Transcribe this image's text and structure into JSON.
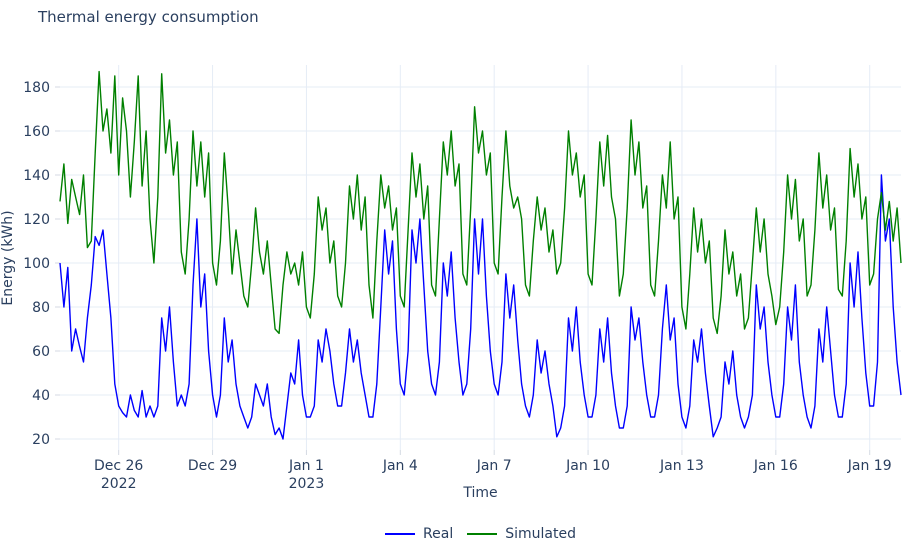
{
  "title": "Thermal energy consumption",
  "colors": {
    "text": "#2a3f5f",
    "grid": "#e5ecf6",
    "tick": "#d4dae3",
    "background": "#ffffff",
    "real": "#0000ff",
    "simulated": "#008000"
  },
  "chart_data": {
    "type": "line",
    "title": "Thermal energy consumption",
    "xlabel": "Time",
    "ylabel": "Energy (kWh)",
    "x_start": "2022-12-24 03:00",
    "x_interval_hours": 3,
    "ylim": [
      15,
      190
    ],
    "y_ticks": [
      20,
      40,
      60,
      80,
      100,
      120,
      140,
      160,
      180
    ],
    "x_ticks": [
      {
        "index": 15,
        "label": "Dec 26",
        "sublabel": "2022"
      },
      {
        "index": 39,
        "label": "Dec 29",
        "sublabel": ""
      },
      {
        "index": 63,
        "label": "Jan 1",
        "sublabel": "2023"
      },
      {
        "index": 87,
        "label": "Jan 4",
        "sublabel": ""
      },
      {
        "index": 111,
        "label": "Jan 7",
        "sublabel": ""
      },
      {
        "index": 135,
        "label": "Jan 10",
        "sublabel": ""
      },
      {
        "index": 159,
        "label": "Jan 13",
        "sublabel": ""
      },
      {
        "index": 183,
        "label": "Jan 16",
        "sublabel": ""
      },
      {
        "index": 207,
        "label": "Jan 19",
        "sublabel": ""
      }
    ],
    "grid": true,
    "legend_position": "bottom-center",
    "series": [
      {
        "name": "Real",
        "color": "#0000ff",
        "values": [
          100,
          80,
          98,
          60,
          70,
          62,
          55,
          75,
          90,
          112,
          108,
          115,
          95,
          75,
          45,
          35,
          32,
          30,
          40,
          33,
          30,
          42,
          30,
          35,
          30,
          35,
          75,
          60,
          80,
          55,
          35,
          40,
          35,
          45,
          90,
          120,
          80,
          95,
          60,
          40,
          30,
          40,
          75,
          55,
          65,
          45,
          35,
          30,
          25,
          30,
          45,
          40,
          35,
          45,
          30,
          22,
          25,
          20,
          35,
          50,
          45,
          65,
          40,
          30,
          30,
          35,
          65,
          55,
          70,
          60,
          45,
          35,
          35,
          50,
          70,
          55,
          65,
          50,
          40,
          30,
          30,
          45,
          80,
          115,
          95,
          110,
          70,
          45,
          40,
          60,
          115,
          100,
          120,
          90,
          60,
          45,
          40,
          55,
          100,
          85,
          105,
          75,
          55,
          40,
          45,
          70,
          120,
          95,
          120,
          85,
          60,
          45,
          40,
          55,
          95,
          75,
          90,
          65,
          45,
          35,
          30,
          40,
          65,
          50,
          60,
          45,
          35,
          21,
          25,
          35,
          75,
          60,
          80,
          55,
          40,
          30,
          30,
          40,
          70,
          55,
          75,
          50,
          35,
          25,
          25,
          35,
          80,
          65,
          75,
          55,
          40,
          30,
          30,
          40,
          70,
          90,
          65,
          75,
          45,
          30,
          25,
          35,
          65,
          55,
          70,
          50,
          35,
          21,
          25,
          30,
          55,
          45,
          60,
          40,
          30,
          25,
          30,
          40,
          90,
          70,
          80,
          55,
          40,
          30,
          30,
          45,
          80,
          65,
          90,
          55,
          40,
          30,
          25,
          35,
          70,
          55,
          80,
          60,
          40,
          30,
          30,
          45,
          100,
          80,
          105,
          75,
          50,
          35,
          35,
          55,
          140,
          110,
          120,
          80,
          55,
          40
        ]
      },
      {
        "name": "Simulated",
        "color": "#008000",
        "values": [
          128,
          145,
          118,
          138,
          130,
          122,
          140,
          107,
          110,
          150,
          187,
          160,
          170,
          150,
          185,
          140,
          175,
          160,
          130,
          155,
          185,
          135,
          160,
          120,
          100,
          130,
          186,
          150,
          165,
          140,
          155,
          105,
          95,
          120,
          160,
          135,
          155,
          130,
          150,
          100,
          90,
          110,
          150,
          125,
          95,
          115,
          100,
          85,
          80,
          100,
          125,
          105,
          95,
          110,
          90,
          70,
          68,
          90,
          105,
          95,
          100,
          90,
          105,
          80,
          75,
          95,
          130,
          115,
          125,
          100,
          110,
          85,
          80,
          100,
          135,
          120,
          140,
          115,
          130,
          90,
          75,
          110,
          140,
          125,
          135,
          115,
          125,
          85,
          80,
          115,
          150,
          130,
          145,
          120,
          135,
          90,
          85,
          120,
          155,
          140,
          160,
          135,
          145,
          95,
          90,
          125,
          171,
          150,
          160,
          140,
          150,
          100,
          95,
          130,
          160,
          135,
          125,
          130,
          120,
          90,
          85,
          110,
          130,
          115,
          125,
          105,
          115,
          95,
          100,
          125,
          160,
          140,
          150,
          130,
          140,
          95,
          90,
          120,
          155,
          135,
          158,
          130,
          120,
          85,
          95,
          125,
          165,
          140,
          155,
          125,
          135,
          90,
          85,
          110,
          140,
          125,
          155,
          120,
          130,
          80,
          70,
          95,
          125,
          105,
          120,
          100,
          110,
          75,
          68,
          85,
          115,
          95,
          105,
          85,
          95,
          70,
          75,
          100,
          125,
          105,
          120,
          95,
          85,
          72,
          80,
          105,
          140,
          120,
          138,
          110,
          120,
          85,
          90,
          115,
          150,
          125,
          140,
          115,
          125,
          88,
          85,
          110,
          152,
          130,
          145,
          120,
          130,
          90,
          95,
          120,
          132,
          115,
          128,
          110,
          125,
          100
        ]
      }
    ]
  }
}
